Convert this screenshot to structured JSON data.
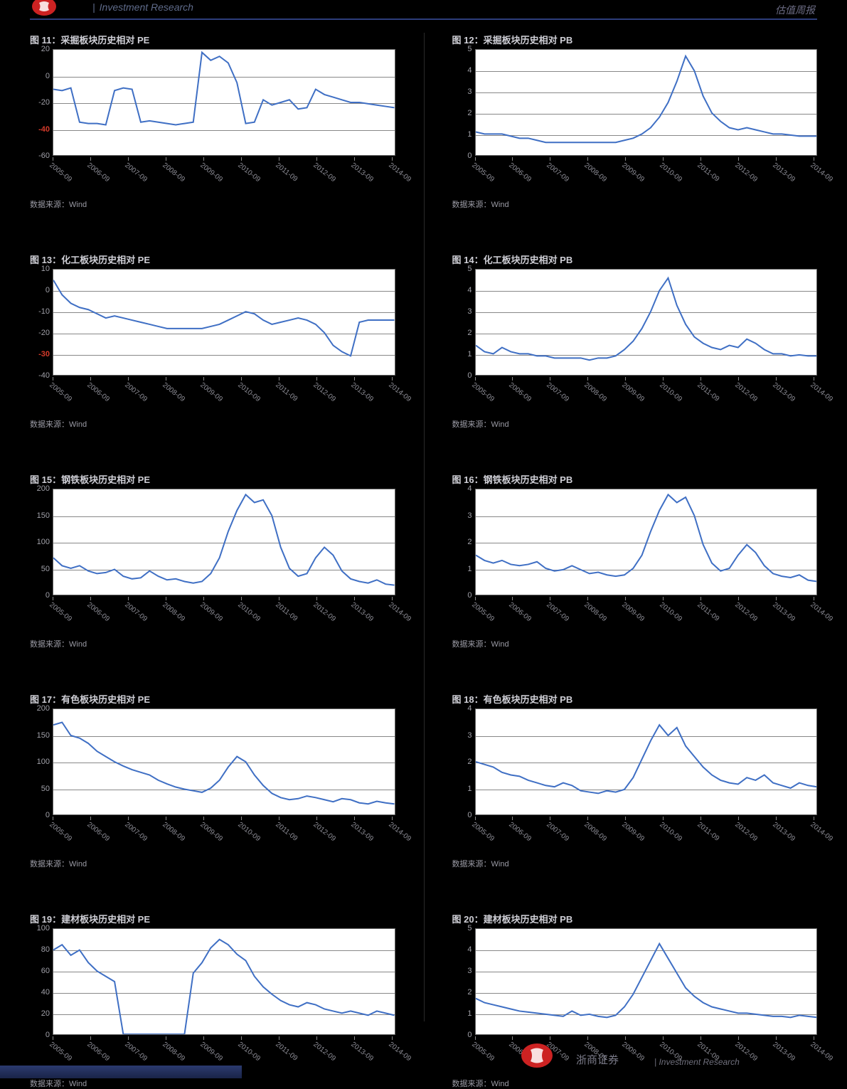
{
  "header": {
    "left_text": "Investment Research",
    "right_text": "估值周报"
  },
  "colors": {
    "line": "#3f6fc4",
    "grid": "#888888",
    "plot_bg": "#ffffff",
    "red_tick": "#d43a2a"
  },
  "xaxis_common": {
    "labels": [
      "2005-09",
      "2006-09",
      "2007-09",
      "2008-09",
      "2009-09",
      "2010-09",
      "2011-09",
      "2012-09",
      "2013-09",
      "2014-09"
    ],
    "positions_pct": [
      0,
      11,
      22,
      33,
      44,
      55,
      66,
      77,
      88,
      99
    ]
  },
  "source_text": "数据来源：Wind",
  "charts": [
    {
      "title": "图 11：采掘板块历史相对 PE",
      "ymin": -60,
      "ymax": 20,
      "yticks": [
        {
          "v": 20
        },
        {
          "v": 0
        },
        {
          "v": -20
        },
        {
          "v": -40,
          "red": true
        },
        {
          "v": -60
        }
      ],
      "series": [
        -10,
        -11,
        -9,
        -35,
        -36,
        -36,
        -37,
        -11,
        -9,
        -10,
        -35,
        -34,
        -35,
        -36,
        -37,
        -36,
        -35,
        18,
        12,
        15,
        10,
        -5,
        -36,
        -35,
        -18,
        -22,
        -20,
        -18,
        -25,
        -24,
        -10,
        -14,
        -16,
        -18,
        -20,
        -20,
        -21,
        -22,
        -23,
        -24
      ]
    },
    {
      "title": "图 12：采掘板块历史相对 PB",
      "ymin": 0,
      "ymax": 5,
      "yticks": [
        {
          "v": 5
        },
        {
          "v": 4
        },
        {
          "v": 3
        },
        {
          "v": 2
        },
        {
          "v": 1
        },
        {
          "v": 0
        }
      ],
      "series": [
        1.1,
        1.0,
        1.0,
        1.0,
        0.9,
        0.8,
        0.8,
        0.7,
        0.6,
        0.6,
        0.6,
        0.6,
        0.6,
        0.6,
        0.6,
        0.6,
        0.6,
        0.7,
        0.8,
        1.0,
        1.3,
        1.8,
        2.5,
        3.5,
        4.7,
        4.0,
        2.8,
        2.0,
        1.6,
        1.3,
        1.2,
        1.3,
        1.2,
        1.1,
        1.0,
        1.0,
        0.95,
        0.9,
        0.9,
        0.9
      ]
    },
    {
      "title": "图 13：化工板块历史相对 PE",
      "ymin": -40,
      "ymax": 10,
      "yticks": [
        {
          "v": 10
        },
        {
          "v": 0
        },
        {
          "v": -10
        },
        {
          "v": -20
        },
        {
          "v": -30,
          "red": true
        },
        {
          "v": -40
        }
      ],
      "series": [
        5,
        -2,
        -6,
        -8,
        -9,
        -11,
        -13,
        -12,
        -13,
        -14,
        -15,
        -16,
        -17,
        -18,
        -18,
        -18,
        -18,
        -18,
        -17,
        -16,
        -14,
        -12,
        -10,
        -11,
        -14,
        -16,
        -15,
        -14,
        -13,
        -14,
        -16,
        -20,
        -26,
        -29,
        -31,
        -15,
        -14,
        -14,
        -14,
        -14
      ]
    },
    {
      "title": "图 14：化工板块历史相对 PB",
      "ymin": 0,
      "ymax": 5,
      "yticks": [
        {
          "v": 5
        },
        {
          "v": 4
        },
        {
          "v": 3
        },
        {
          "v": 2
        },
        {
          "v": 1
        },
        {
          "v": 0
        }
      ],
      "series": [
        1.4,
        1.1,
        1.0,
        1.3,
        1.1,
        1.0,
        1.0,
        0.9,
        0.9,
        0.8,
        0.8,
        0.8,
        0.8,
        0.7,
        0.8,
        0.8,
        0.9,
        1.2,
        1.6,
        2.2,
        3.0,
        4.0,
        4.6,
        3.3,
        2.4,
        1.8,
        1.5,
        1.3,
        1.2,
        1.4,
        1.3,
        1.7,
        1.5,
        1.2,
        1.0,
        1.0,
        0.9,
        0.95,
        0.9,
        0.9
      ]
    },
    {
      "title": "图 15：钢铁板块历史相对 PE",
      "ymin": 0,
      "ymax": 200,
      "yticks": [
        {
          "v": 200
        },
        {
          "v": 150
        },
        {
          "v": 100
        },
        {
          "v": 50
        },
        {
          "v": 0
        }
      ],
      "series": [
        70,
        55,
        50,
        55,
        45,
        40,
        42,
        48,
        35,
        30,
        32,
        45,
        35,
        28,
        30,
        25,
        22,
        25,
        40,
        70,
        120,
        160,
        190,
        175,
        180,
        150,
        90,
        50,
        35,
        40,
        70,
        90,
        75,
        45,
        30,
        25,
        22,
        28,
        20,
        18
      ]
    },
    {
      "title": "图 16：钢铁板块历史相对 PB",
      "ymin": 0,
      "ymax": 4,
      "yticks": [
        {
          "v": 4
        },
        {
          "v": 3
        },
        {
          "v": 2
        },
        {
          "v": 1
        },
        {
          "v": 0
        }
      ],
      "series": [
        1.5,
        1.3,
        1.2,
        1.3,
        1.15,
        1.1,
        1.15,
        1.25,
        1.0,
        0.9,
        0.95,
        1.1,
        0.95,
        0.8,
        0.85,
        0.75,
        0.7,
        0.75,
        1.0,
        1.5,
        2.4,
        3.2,
        3.8,
        3.5,
        3.7,
        3.0,
        1.9,
        1.2,
        0.9,
        1.0,
        1.5,
        1.9,
        1.6,
        1.1,
        0.8,
        0.7,
        0.65,
        0.75,
        0.55,
        0.5
      ]
    },
    {
      "title": "图 17：有色板块历史相对 PE",
      "ymin": 0,
      "ymax": 200,
      "yticks": [
        {
          "v": 200
        },
        {
          "v": 150
        },
        {
          "v": 100
        },
        {
          "v": 50
        },
        {
          "v": 0
        }
      ],
      "series": [
        170,
        175,
        150,
        145,
        135,
        120,
        110,
        100,
        92,
        85,
        80,
        75,
        65,
        58,
        52,
        48,
        45,
        42,
        50,
        65,
        90,
        110,
        100,
        75,
        55,
        40,
        32,
        28,
        30,
        35,
        32,
        28,
        24,
        30,
        28,
        22,
        20,
        25,
        22,
        20
      ]
    },
    {
      "title": "图 18：有色板块历史相对 PB",
      "ymin": 0,
      "ymax": 4,
      "yticks": [
        {
          "v": 4
        },
        {
          "v": 3
        },
        {
          "v": 2
        },
        {
          "v": 1
        },
        {
          "v": 0
        }
      ],
      "series": [
        2.0,
        1.9,
        1.8,
        1.6,
        1.5,
        1.45,
        1.3,
        1.2,
        1.1,
        1.05,
        1.2,
        1.1,
        0.9,
        0.85,
        0.8,
        0.9,
        0.85,
        0.95,
        1.4,
        2.1,
        2.8,
        3.4,
        3.0,
        3.3,
        2.6,
        2.2,
        1.8,
        1.5,
        1.3,
        1.2,
        1.15,
        1.4,
        1.3,
        1.5,
        1.2,
        1.1,
        1.0,
        1.2,
        1.1,
        1.05
      ]
    },
    {
      "title": "图 19：建材板块历史相对 PE",
      "ymin": 0,
      "ymax": 100,
      "yticks": [
        {
          "v": 100
        },
        {
          "v": 80
        },
        {
          "v": 60
        },
        {
          "v": 40
        },
        {
          "v": 20
        },
        {
          "v": 0
        }
      ],
      "series": [
        80,
        85,
        75,
        80,
        68,
        60,
        55,
        50,
        0,
        0,
        0,
        0,
        0,
        0,
        0,
        0,
        58,
        68,
        82,
        90,
        85,
        76,
        70,
        55,
        45,
        38,
        32,
        28,
        26,
        30,
        28,
        24,
        22,
        20,
        22,
        20,
        18,
        22,
        20,
        18
      ]
    },
    {
      "title": "图 20：建材板块历史相对 PB",
      "ymin": 0,
      "ymax": 5,
      "yticks": [
        {
          "v": 5
        },
        {
          "v": 4
        },
        {
          "v": 3
        },
        {
          "v": 2
        },
        {
          "v": 1
        },
        {
          "v": 0
        }
      ],
      "series": [
        1.7,
        1.5,
        1.4,
        1.3,
        1.2,
        1.1,
        1.05,
        1.0,
        0.95,
        0.9,
        0.85,
        1.1,
        0.9,
        0.95,
        0.85,
        0.8,
        0.9,
        1.3,
        1.9,
        2.7,
        3.5,
        4.3,
        3.6,
        2.9,
        2.2,
        1.8,
        1.5,
        1.3,
        1.2,
        1.1,
        1.0,
        1.0,
        0.95,
        0.9,
        0.85,
        0.85,
        0.8,
        0.9,
        0.85,
        0.8
      ]
    }
  ],
  "footer": {
    "brand": "浙商证券",
    "sub": "Investment Research"
  }
}
